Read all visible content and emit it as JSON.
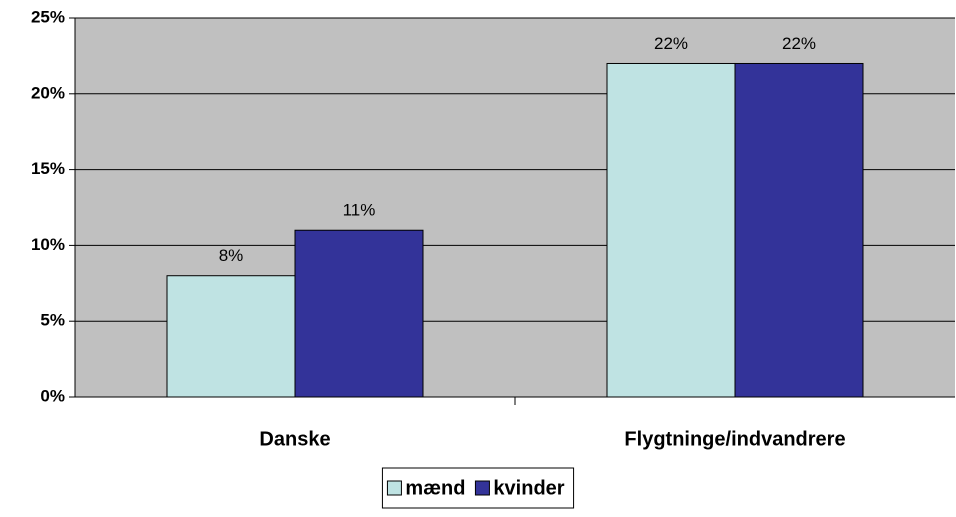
{
  "chart_data": {
    "type": "bar",
    "categories": [
      "Danske",
      "Flygtninge/indvandrere"
    ],
    "series": [
      {
        "name": "mænd",
        "color": "#bfe3e3",
        "values": [
          8,
          22
        ],
        "value_labels": [
          "8%",
          "22%"
        ]
      },
      {
        "name": "kvinder",
        "color": "#333399",
        "values": [
          11,
          22
        ],
        "value_labels": [
          "11%",
          "22%"
        ]
      }
    ],
    "ylim": [
      0,
      25
    ],
    "yticks": [
      {
        "value": 0,
        "label": "0%"
      },
      {
        "value": 5,
        "label": "5%"
      },
      {
        "value": 10,
        "label": "10%"
      },
      {
        "value": 15,
        "label": "15%"
      },
      {
        "value": 20,
        "label": "20%"
      },
      {
        "value": 25,
        "label": "25%"
      }
    ],
    "grid": true,
    "legend": "bottom"
  }
}
